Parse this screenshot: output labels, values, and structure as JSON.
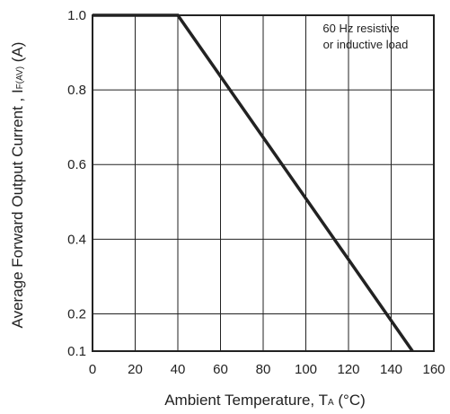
{
  "chart_data": {
    "type": "line",
    "x_axis": {
      "label_main": "Ambient Temperature, T",
      "label_sub": "A",
      "label_unit": " (°C)",
      "range": [
        0,
        160
      ],
      "ticks": [
        0,
        20,
        40,
        60,
        80,
        100,
        120,
        140,
        160
      ],
      "tick_labels": [
        "0",
        "20",
        "40",
        "60",
        "80",
        "100",
        "120",
        "140",
        "160"
      ]
    },
    "y_axis": {
      "label_main": "Average Forward Output Current , I",
      "label_sub": "F(AV)",
      "label_unit": " (A)",
      "range": [
        0.1,
        1.0
      ],
      "ticks": [
        0.1,
        0.2,
        0.4,
        0.6,
        0.8,
        1.0
      ],
      "tick_labels": [
        "0.1",
        "0.2",
        "0.4",
        "0.6",
        "0.8",
        "1.0"
      ]
    },
    "grid": true,
    "annotation": {
      "lines": [
        "60 Hz resistive",
        "or inductive load"
      ],
      "placement": "top-right"
    },
    "series": [
      {
        "points": [
          [
            0,
            1.0
          ],
          [
            40,
            1.0
          ],
          [
            150,
            0.1
          ]
        ]
      }
    ]
  }
}
